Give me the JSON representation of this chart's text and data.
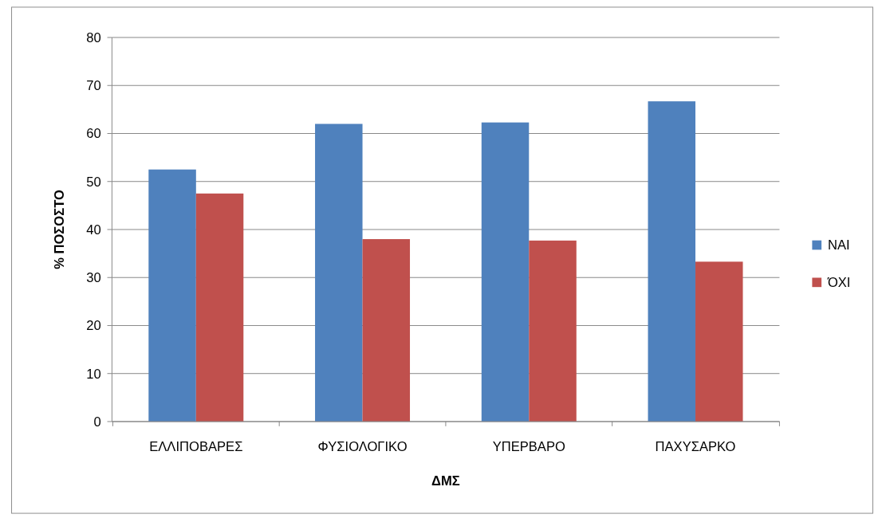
{
  "chart_data": {
    "type": "bar",
    "xlabel": "ΔΜΣ",
    "ylabel": "% ΠΟΣΟΣΤΟ",
    "categories": [
      "ΕΛΛΙΠΟΒΑΡΕΣ",
      "ΦΥΣΙΟΛΟΓΙΚΟ",
      "ΥΠΕΡΒΑΡΟ",
      "ΠΑΧΥΣΑΡΚΟ"
    ],
    "series": [
      {
        "name": "ΝΑΙ",
        "color": "#4f81bd",
        "values": [
          52.5,
          62,
          62.3,
          66.7
        ]
      },
      {
        "name": "ΌΧΙ",
        "color": "#c0504d",
        "values": [
          47.5,
          38,
          37.7,
          33.3
        ]
      }
    ],
    "ylim": [
      0,
      80
    ],
    "yticks": [
      0,
      10,
      20,
      30,
      40,
      50,
      60,
      70,
      80
    ],
    "grid": "y",
    "legend": "right"
  }
}
